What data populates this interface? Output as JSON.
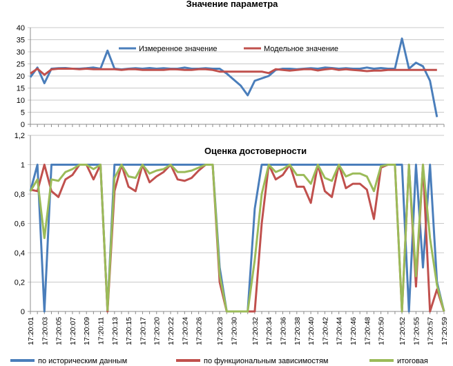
{
  "chart_data": [
    {
      "type": "line",
      "title": "Значение параметра",
      "xlabel": "",
      "ylabel": "",
      "ylim": [
        0,
        40
      ],
      "yticks": [
        "0",
        "5",
        "10",
        "15",
        "20",
        "25",
        "30",
        "35",
        "40"
      ],
      "grid": true,
      "legend_position": "top-center",
      "series": [
        {
          "name": "Измеренное значение",
          "color": "#4a7ebb",
          "values": [
            19.5,
            23.5,
            17,
            23,
            23.2,
            23.3,
            23,
            23,
            23.2,
            23.5,
            23,
            30.5,
            23,
            22.7,
            23,
            23.2,
            23,
            23.3,
            23,
            23.2,
            23,
            23,
            23.5,
            23,
            23,
            23.2,
            23,
            23,
            21,
            18.5,
            16,
            12,
            18,
            19,
            20,
            22.5,
            23,
            23,
            22.8,
            23,
            23.2,
            23,
            23.5,
            23.3,
            23,
            23.2,
            23,
            23,
            23.5,
            23,
            23.3,
            23,
            23,
            35.5,
            23,
            25.5,
            24,
            18,
            3
          ]
        },
        {
          "name": "Модельное значение",
          "color": "#c0504d",
          "values": [
            21,
            23,
            20.5,
            22.7,
            23,
            23,
            23,
            22.8,
            23,
            22.8,
            22.8,
            22.8,
            22.8,
            22.5,
            22.8,
            22.8,
            22.5,
            22.5,
            22.5,
            22.5,
            22.8,
            22.7,
            22.5,
            22.5,
            22.8,
            22.8,
            22.5,
            21.8,
            21.8,
            21.8,
            21.8,
            21.8,
            21.8,
            21.8,
            21.2,
            22.8,
            22.5,
            22.2,
            22.5,
            22.8,
            22.8,
            22.3,
            22.7,
            23,
            22.5,
            22.8,
            22.5,
            22.3,
            22,
            22.2,
            22.2,
            22.5,
            22.5,
            22.5,
            22.5,
            22.5,
            22.5,
            22.5,
            22.5
          ]
        }
      ]
    },
    {
      "type": "line",
      "title": "Оценка достоверности",
      "xlabel": "",
      "ylabel": "",
      "ylim": [
        0,
        1.2
      ],
      "yticks": [
        "0",
        "0,2",
        "0,4",
        "0,6",
        "0,8",
        "1",
        "1,2"
      ],
      "grid": true,
      "legend_position": "bottom",
      "x": [
        "17:20:01",
        "",
        "17:20:03",
        "",
        "17:20:05",
        "",
        "17:20:07",
        "",
        "17:20:09",
        "",
        "17:20:11",
        "",
        "17:20:13",
        "",
        "17:20:15",
        "",
        "17:20:17",
        "",
        "17:20:20",
        "",
        "17:20:22",
        "",
        "17:20:24",
        "",
        "17:20:26",
        "",
        "",
        "17:20:28",
        "",
        "17:20:30",
        "",
        "",
        "17:20:32",
        "",
        "17:20:34",
        "",
        "17:20:36",
        "",
        "17:20:38",
        "",
        "17:20:40",
        "",
        "17:20:42",
        "",
        "17:20:44",
        "",
        "17:20:46",
        "",
        "17:20:48",
        "",
        "17:20:50",
        "",
        "",
        "17:20:52",
        "",
        "17:20:55",
        "",
        "17:20:57",
        "",
        "17:20:59"
      ],
      "series": [
        {
          "name": "по историческим данным",
          "color": "#4a7ebb",
          "values": [
            0.82,
            1,
            0,
            1,
            1,
            1,
            1,
            1,
            1,
            1,
            1,
            0.01,
            1,
            1,
            1,
            1,
            1,
            1,
            1,
            1,
            1,
            1,
            1,
            1,
            1,
            1,
            1,
            0.3,
            0,
            0,
            0,
            0,
            0.7,
            1,
            1,
            1,
            1,
            1,
            1,
            1,
            1,
            1,
            1,
            1,
            1,
            1,
            1,
            1,
            1,
            1,
            1,
            1,
            1,
            1,
            0,
            1,
            0.3,
            1,
            0.2,
            0
          ]
        },
        {
          "name": "по функциональным зависимостям",
          "color": "#c0504d",
          "values": [
            0.83,
            0.82,
            1,
            0.82,
            0.78,
            0.9,
            0.93,
            1,
            1,
            0.9,
            1,
            0,
            0.82,
            1,
            0.85,
            0.82,
            1,
            0.88,
            0.92,
            0.95,
            1,
            0.9,
            0.89,
            0.91,
            0.96,
            1,
            1,
            0.2,
            0,
            0,
            0,
            0,
            0,
            0.6,
            1,
            0.9,
            0.93,
            1,
            0.85,
            0.85,
            0.74,
            1,
            0.82,
            0.78,
            1,
            0.84,
            0.87,
            0.87,
            0.83,
            0.63,
            0.98,
            1,
            1,
            0,
            1,
            0.17,
            1,
            0,
            0.15,
            0
          ]
        },
        {
          "name": "итоговая",
          "color": "#9bbb59",
          "values": [
            0.82,
            0.9,
            0.5,
            0.9,
            0.89,
            0.95,
            0.97,
            1,
            1,
            0.97,
            1,
            0.01,
            0.91,
            1,
            0.92,
            0.91,
            1,
            0.94,
            0.96,
            0.97,
            1,
            0.95,
            0.95,
            0.96,
            0.98,
            1,
            1,
            0.25,
            0,
            0,
            0,
            0,
            0.35,
            0.8,
            1,
            0.95,
            0.97,
            1,
            0.93,
            0.93,
            0.87,
            1,
            0.91,
            0.89,
            1,
            0.92,
            0.94,
            0.94,
            0.92,
            0.82,
            0.99,
            1,
            1,
            0,
            1,
            0.24,
            1,
            0.5,
            0.18,
            0
          ]
        }
      ]
    }
  ]
}
